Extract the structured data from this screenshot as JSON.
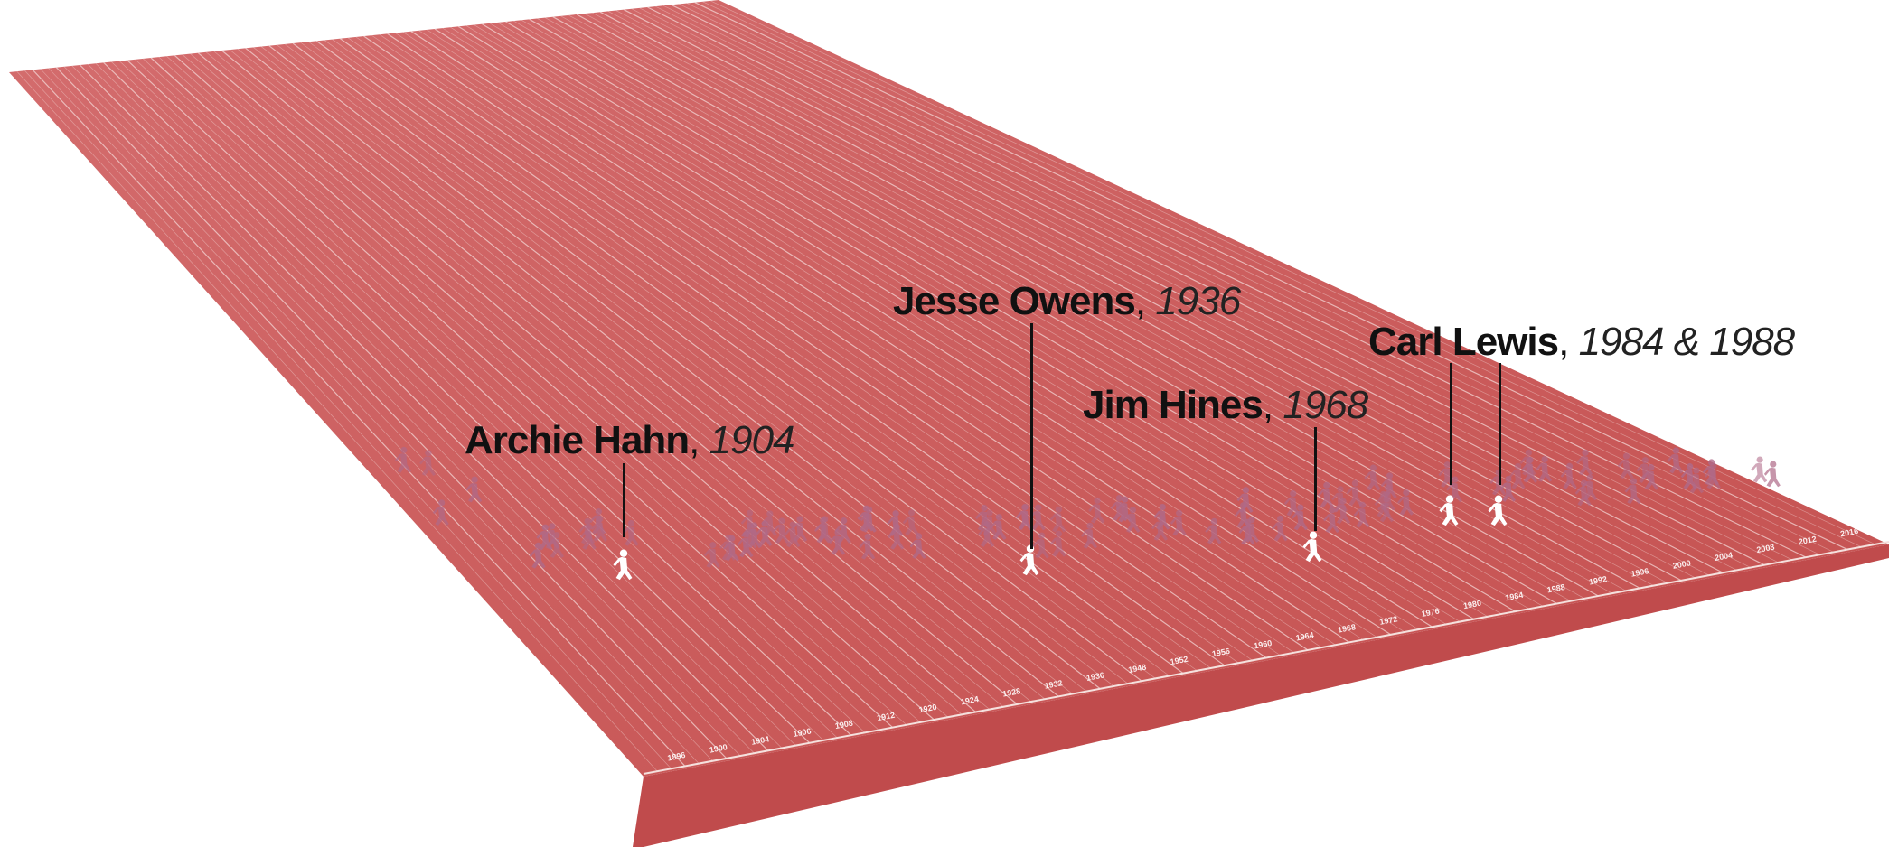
{
  "years": [
    "1896",
    "1900",
    "1904",
    "1906",
    "1908",
    "1912",
    "1920",
    "1924",
    "1928",
    "1932",
    "1936",
    "1948",
    "1952",
    "1956",
    "1960",
    "1964",
    "1968",
    "1972",
    "1976",
    "1980",
    "1984",
    "1988",
    "1992",
    "1996",
    "2000",
    "2004",
    "2008",
    "2012",
    "2016"
  ],
  "callouts": [
    {
      "name": "Archie Hahn",
      "sep": ",",
      "year": "1904"
    },
    {
      "name": "Jesse Owens",
      "sep": ",",
      "year": "1936"
    },
    {
      "name": "Jim Hines",
      "sep": ",",
      "year": "1968"
    },
    {
      "name": "Carl Lewis",
      "sep": ",",
      "year": "1984 & 1988"
    }
  ],
  "colors": {
    "track": "#c9585a",
    "track_light": "#d16a6b",
    "track_front": "#b84548",
    "lane_line": "#f3d6d4",
    "runner": "#b06a88",
    "runner_highlight": "#ffffff"
  }
}
